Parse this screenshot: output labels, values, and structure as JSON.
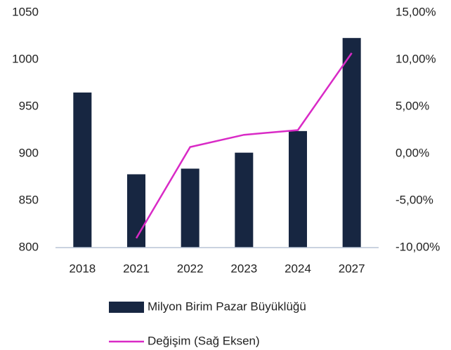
{
  "chart_data": {
    "type": "bar",
    "categories": [
      "2018",
      "2021",
      "2022",
      "2023",
      "2024",
      "2027"
    ],
    "series": [
      {
        "name": "Milyon Birim Pazar Büyüklüğü",
        "type": "bar",
        "color": "#172641",
        "values": [
          965,
          878,
          884,
          901,
          924,
          1023
        ]
      },
      {
        "name": "Değişim (Sağ Eksen)",
        "type": "line",
        "axis": "y2",
        "color": "#d92ac6",
        "values": [
          null,
          -9.0,
          0.7,
          2.0,
          2.5,
          10.7
        ]
      }
    ],
    "ylim": [
      800,
      1050
    ],
    "yticks": [
      800,
      850,
      900,
      950,
      1000,
      1050
    ],
    "y2lim": [
      -10,
      15
    ],
    "y2ticks": [
      {
        "value": -10,
        "label": "-10,00%"
      },
      {
        "value": -5,
        "label": "-5,00%"
      },
      {
        "value": 0,
        "label": "0,00%"
      },
      {
        "value": 5,
        "label": "5,00%"
      },
      {
        "value": 10,
        "label": "10,00%"
      },
      {
        "value": 15,
        "label": "15,00%"
      }
    ],
    "grid": false,
    "legend": "bottom"
  }
}
